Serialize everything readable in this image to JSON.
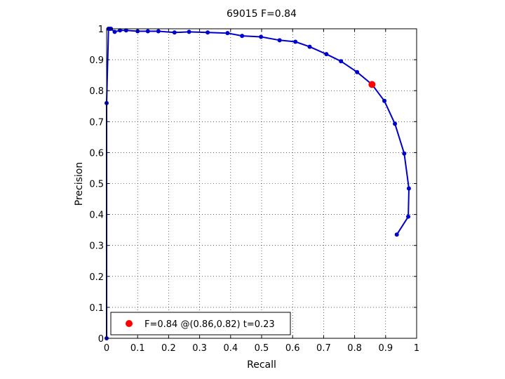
{
  "chart_data": {
    "type": "line",
    "title": "69015 F=0.84",
    "xlabel": "Recall",
    "ylabel": "Precision",
    "xlim": [
      0,
      1
    ],
    "ylim": [
      0,
      1
    ],
    "xticks": [
      "0",
      "0.1",
      "0.2",
      "0.3",
      "0.4",
      "0.5",
      "0.6",
      "0.7",
      "0.8",
      "0.9",
      "1"
    ],
    "yticks": [
      "0",
      "0.1",
      "0.2",
      "0.3",
      "0.4",
      "0.5",
      "0.6",
      "0.7",
      "0.8",
      "0.9",
      "1"
    ],
    "grid": true,
    "legend_position": "bottom-left",
    "series": [
      {
        "color": "#0000cc",
        "x": [
          0.0,
          0.0,
          0.006,
          0.01,
          0.014,
          0.026,
          0.043,
          0.063,
          0.1,
          0.133,
          0.167,
          0.219,
          0.266,
          0.326,
          0.39,
          0.437,
          0.498,
          0.558,
          0.609,
          0.655,
          0.709,
          0.756,
          0.808,
          0.856,
          0.896,
          0.93,
          0.96,
          0.975,
          0.973,
          0.936
        ],
        "y": [
          0.0,
          0.76,
          1.0,
          1.0,
          1.0,
          0.99,
          0.995,
          0.995,
          0.992,
          0.992,
          0.992,
          0.988,
          0.99,
          0.988,
          0.986,
          0.977,
          0.974,
          0.963,
          0.958,
          0.942,
          0.918,
          0.895,
          0.86,
          0.82,
          0.767,
          0.693,
          0.597,
          0.484,
          0.393,
          0.335
        ]
      }
    ],
    "highlight_point": {
      "x": 0.856,
      "y": 0.82,
      "color": "#ff0000"
    },
    "legend_label": "F=0.84 @(0.86,0.82) t=0.23"
  }
}
